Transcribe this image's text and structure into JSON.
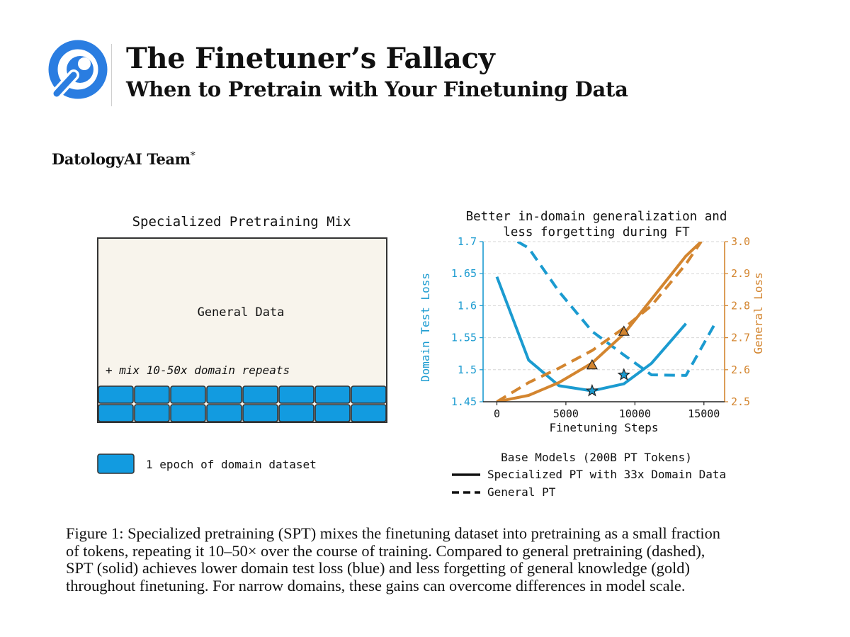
{
  "header": {
    "title": "The Finetuner’s Fallacy",
    "subtitle": "When to Pretrain with Your Finetuning Data",
    "author": "DatologyAI Team",
    "author_mark": "*",
    "logo_icon": "wrench-magnifier-icon"
  },
  "colors": {
    "domain_blue": "#1b9bd0",
    "block_blue": "#129be0",
    "general_orange": "#d3852f",
    "box_fill": "#f8f4ec",
    "box_border": "#333333"
  },
  "mix_diagram": {
    "title": "Specialized Pretraining Mix",
    "general_label": "General Data",
    "mix_note": "+ mix 10-50x domain repeats",
    "block_columns": 8,
    "block_rows": 2,
    "legend_label": "1 epoch of domain dataset"
  },
  "chart_data": {
    "type": "line",
    "title_lines": [
      "Better in-domain generalization and",
      "less forgetting during FT"
    ],
    "xlabel": "Finetuning Steps",
    "ylabel_left": "Domain Test Loss",
    "ylabel_right": "General Loss",
    "xlim": [
      -1000,
      16500
    ],
    "ylim_left": [
      1.45,
      1.7
    ],
    "ylim_right": [
      2.5,
      3.0
    ],
    "x_ticks": [
      0,
      5000,
      10000,
      15000
    ],
    "x_tick_labels": [
      "0",
      "5000",
      "10000",
      "15000"
    ],
    "y_left_ticks": [
      1.45,
      1.5,
      1.55,
      1.6,
      1.65,
      1.7
    ],
    "y_left_tick_labels": [
      "1.45",
      "1.5",
      "1.55",
      "1.6",
      "1.65",
      "1.7"
    ],
    "y_right_ticks": [
      2.5,
      2.6,
      2.7,
      2.8,
      2.9,
      3.0
    ],
    "y_right_tick_labels": [
      "2.5",
      "2.6",
      "2.7",
      "2.8",
      "2.9",
      "3.0"
    ],
    "grid": true,
    "series": [
      {
        "axis": "left",
        "color": "#1b9bd0",
        "dashed": false,
        "x": [
          0,
          2300,
          4500,
          6900,
          9200,
          11200,
          13700
        ],
        "y": [
          1.645,
          1.515,
          1.475,
          1.467,
          1.478,
          1.51,
          1.572
        ]
      },
      {
        "axis": "left",
        "color": "#1b9bd0",
        "dashed": true,
        "x": [
          1500,
          2300,
          4500,
          6900,
          9200,
          11200,
          13700,
          15800
        ],
        "y": [
          1.7,
          1.69,
          1.622,
          1.56,
          1.523,
          1.492,
          1.491,
          1.572
        ]
      },
      {
        "axis": "right",
        "color": "#d3852f",
        "dashed": false,
        "x": [
          0,
          2300,
          4500,
          6900,
          9200,
          11200,
          13700,
          14800
        ],
        "y": [
          2.5,
          2.52,
          2.56,
          2.621,
          2.712,
          2.82,
          2.955,
          3.0
        ]
      },
      {
        "axis": "right",
        "color": "#d3852f",
        "dashed": true,
        "x": [
          0,
          2300,
          4500,
          6900,
          9200,
          11200,
          13700,
          14800
        ],
        "y": [
          2.5,
          2.56,
          2.605,
          2.66,
          2.73,
          2.8,
          2.93,
          3.0
        ]
      }
    ],
    "markers": [
      {
        "shape": "star",
        "axis": "left",
        "x": 6900,
        "y": 1.467,
        "color": "#1b9bd0"
      },
      {
        "shape": "star",
        "axis": "left",
        "x": 9200,
        "y": 1.492,
        "color": "#1b9bd0"
      },
      {
        "shape": "triangle",
        "axis": "right",
        "x": 6900,
        "y": 2.615,
        "color": "#d3852f"
      },
      {
        "shape": "triangle",
        "axis": "right",
        "x": 9200,
        "y": 2.72,
        "color": "#d3852f"
      }
    ],
    "legend": {
      "title": "Base Models (200B PT Tokens)",
      "entries": [
        {
          "label": "Specialized PT with 33x Domain Data",
          "dashed": false
        },
        {
          "label": "General PT",
          "dashed": true
        }
      ],
      "placement": "below"
    }
  },
  "caption": {
    "lines": [
      "Figure 1: Specialized pretraining (SPT) mixes the finetuning dataset into pretraining as a small fraction",
      "of tokens, repeating it 10–50× over the course of training. Compared to general pretraining (dashed),",
      "SPT (solid) achieves lower domain test loss (blue) and less forgetting of general knowledge (gold)",
      "throughout finetuning. For narrow domains, these gains can overcome differences in model scale."
    ]
  }
}
